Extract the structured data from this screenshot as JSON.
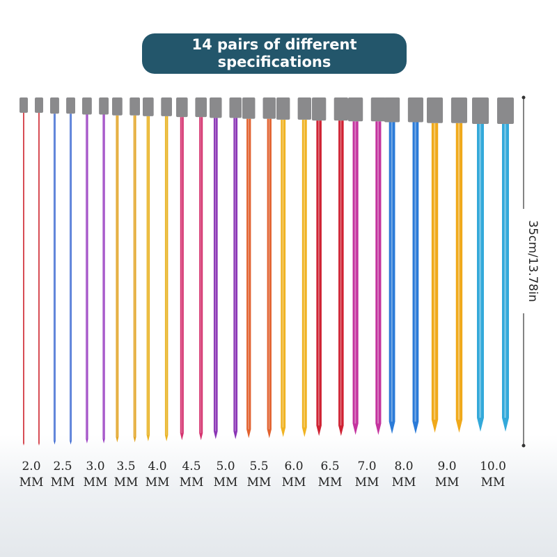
{
  "banner": {
    "title": "14 pairs of different specifications"
  },
  "needles": [
    {
      "size": "2.0",
      "unit": "MM",
      "color": "#d0303a"
    },
    {
      "size": "2.5",
      "unit": "MM",
      "color": "#3463d0"
    },
    {
      "size": "3.0",
      "unit": "MM",
      "color": "#9a3fc2"
    },
    {
      "size": "3.5",
      "unit": "MM",
      "color": "#e2a526"
    },
    {
      "size": "4.0",
      "unit": "MM",
      "color": "#e9b324"
    },
    {
      "size": "4.5",
      "unit": "MM",
      "color": "#d5336f"
    },
    {
      "size": "5.0",
      "unit": "MM",
      "color": "#8a35b5"
    },
    {
      "size": "5.5",
      "unit": "MM",
      "color": "#e2622f"
    },
    {
      "size": "6.0",
      "unit": "MM",
      "color": "#f0b322"
    },
    {
      "size": "6.5",
      "unit": "MM",
      "color": "#cf2233"
    },
    {
      "size": "7.0",
      "unit": "MM",
      "color": "#c4349f"
    },
    {
      "size": "8.0",
      "unit": "MM",
      "color": "#2b7bd8"
    },
    {
      "size": "9.0",
      "unit": "MM",
      "color": "#f0a91a"
    },
    {
      "size": "10.0",
      "unit": "MM",
      "color": "#33a9da"
    }
  ],
  "dimension": "35cm/13.78in"
}
